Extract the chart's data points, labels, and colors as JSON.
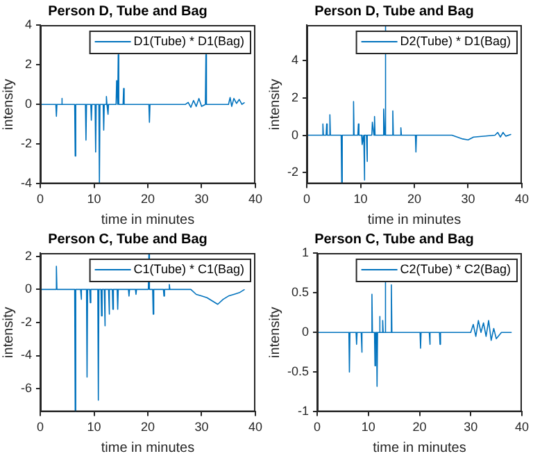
{
  "chart_data": [
    {
      "type": "line",
      "title": "Person D, Tube and Bag",
      "xlabel": "time in minutes",
      "ylabel": "intensity",
      "xlim": [
        0,
        40
      ],
      "xticks": [
        0,
        10,
        20,
        30,
        40
      ],
      "ylim": [
        -4,
        4
      ],
      "yticks": [
        -4,
        -2,
        0,
        2,
        4
      ],
      "legend": "top right",
      "marker": "none",
      "grid": false,
      "x": [
        0,
        2.9,
        3,
        3.1,
        3.9,
        4,
        4.1,
        6.4,
        6.5,
        6.6,
        8.4,
        8.5,
        8.6,
        9.4,
        9.5,
        9.6,
        10.2,
        10.3,
        10.4,
        10.9,
        11,
        11.1,
        11.7,
        11.8,
        11.9,
        12.2,
        12.3,
        12.4,
        12.6,
        12.7,
        14.1,
        14.2,
        14.4,
        14.5,
        14.6,
        15.4,
        15.5,
        15.6,
        20.2,
        20.3,
        20.4,
        27,
        27.5,
        28,
        28.5,
        29,
        29.5,
        30,
        30.7,
        30.8,
        30.9,
        35,
        35.3,
        35.6,
        36,
        36.5,
        37,
        37.5,
        38
      ],
      "series": [
        {
          "name": "D1(Tube) * D1(Bag)",
          "color": "#0072bd",
          "values": [
            0,
            0,
            -0.6,
            0,
            0,
            0.3,
            0,
            0,
            -2.6,
            0,
            0,
            -1.8,
            0,
            0,
            -0.8,
            0,
            0,
            -2.4,
            0,
            0,
            -4,
            0,
            0,
            -1.3,
            0,
            0,
            0.4,
            0,
            -0.5,
            0,
            0,
            1.2,
            0,
            2.5,
            0,
            0,
            0.8,
            0,
            0,
            -0.9,
            0,
            0,
            0.1,
            -0.15,
            0.2,
            -0.1,
            0.3,
            -0.1,
            0,
            2.5,
            0,
            0,
            0.35,
            -0.1,
            0.3,
            0.05,
            0.25,
            0,
            0.1
          ]
        }
      ]
    },
    {
      "type": "line",
      "title": "Person D, Tube and Bag",
      "xlabel": "time in minutes",
      "ylabel": "intensity",
      "xlim": [
        0,
        40
      ],
      "xticks": [
        0,
        10,
        20,
        30,
        40
      ],
      "ylim": [
        -2.6,
        5.9
      ],
      "yticks": [
        -2,
        0,
        2,
        4
      ],
      "legend": "top right",
      "marker": "none",
      "grid": false,
      "x": [
        0,
        2.9,
        3,
        3.1,
        3.6,
        3.7,
        3.8,
        4.2,
        4.3,
        4.4,
        6.4,
        6.5,
        6.6,
        8.6,
        8.7,
        8.8,
        9.5,
        9.6,
        9.7,
        10.2,
        10.3,
        10.6,
        10.7,
        10.8,
        11.1,
        11.2,
        11.3,
        12.1,
        12.2,
        12.5,
        12.6,
        12.7,
        14.2,
        14.3,
        14.5,
        14.6,
        14.7,
        15.9,
        16,
        16.1,
        17.4,
        17.5,
        17.6,
        20.2,
        20.3,
        20.4,
        27,
        28,
        29,
        30,
        31,
        35,
        35.5,
        36,
        36.5,
        37,
        38
      ],
      "series": [
        {
          "name": "D2(Tube) * D1(Bag)",
          "color": "#0072bd",
          "values": [
            0,
            0,
            0.6,
            0,
            0,
            0.6,
            0,
            0,
            1.1,
            0,
            0,
            -2.6,
            0,
            0,
            1.8,
            0,
            0,
            0.6,
            0,
            0,
            -0.5,
            0,
            -2.4,
            0,
            0,
            -1.4,
            0,
            0,
            0.7,
            0,
            1,
            0,
            0,
            1.4,
            0,
            5.9,
            0,
            0,
            1.3,
            0,
            0,
            0.4,
            0,
            0,
            -0.9,
            0,
            0,
            -0.1,
            -0.2,
            -0.25,
            -0.1,
            0,
            0.15,
            -0.1,
            0.15,
            -0.05,
            0.05
          ]
        }
      ]
    },
    {
      "type": "line",
      "title": "Person C, Tube and Bag",
      "xlabel": "time in minutes",
      "ylabel": "intensity",
      "xlim": [
        0,
        40
      ],
      "xticks": [
        0,
        10,
        20,
        30,
        40
      ],
      "ylim": [
        -7.4,
        2.2
      ],
      "yticks": [
        -6,
        -4,
        -2,
        0,
        2
      ],
      "legend": "top right",
      "marker": "none",
      "grid": false,
      "x": [
        0,
        2.9,
        3,
        3.1,
        6.4,
        6.5,
        6.6,
        7.5,
        7.6,
        7.7,
        8.6,
        8.7,
        8.8,
        9.2,
        9.3,
        9.4,
        10.7,
        10.8,
        10.9,
        11.3,
        11.4,
        11.5,
        11.9,
        12,
        12.1,
        12.7,
        12.8,
        12.9,
        13.4,
        13.5,
        13.6,
        14.3,
        14.4,
        14.5,
        16.4,
        16.5,
        16.6,
        17.7,
        17.8,
        17.9,
        20.1,
        20.2,
        20.3,
        20.9,
        21,
        21.1,
        22.9,
        23,
        23.1,
        23.9,
        24,
        24.1,
        28,
        29,
        30,
        31,
        32,
        33,
        34,
        35,
        36,
        37,
        38
      ],
      "series": [
        {
          "name": "C1(Tube) * C1(Bag)",
          "color": "#0072bd",
          "values": [
            0,
            0,
            1.4,
            0,
            0,
            -7.4,
            0,
            0,
            -0.6,
            0,
            0,
            -5.3,
            0,
            0,
            -0.8,
            0,
            0,
            -6.7,
            0,
            0,
            -1.6,
            0,
            0,
            -2.2,
            0,
            0,
            -1.5,
            0,
            0,
            -1.2,
            0,
            0,
            -1.2,
            0,
            0,
            -0.4,
            0,
            0,
            -0.3,
            0,
            0,
            2.2,
            0,
            0,
            -1.5,
            0,
            0,
            -0.4,
            0,
            0,
            0.3,
            0,
            0,
            -0.3,
            -0.4,
            -0.5,
            -0.7,
            -0.9,
            -0.6,
            -0.4,
            -0.3,
            -0.2,
            0
          ]
        }
      ]
    },
    {
      "type": "line",
      "title": "Person C, Tube and Bag",
      "xlabel": "time in minutes",
      "ylabel": "intensity",
      "xlim": [
        0,
        40
      ],
      "xticks": [
        0,
        10,
        20,
        30,
        40
      ],
      "ylim": [
        -1,
        1
      ],
      "yticks": [
        -1,
        -0.5,
        0,
        0.5,
        1
      ],
      "legend": "top right",
      "marker": "none",
      "grid": false,
      "x": [
        0,
        6.2,
        6.3,
        6.4,
        7.6,
        7.7,
        7.8,
        8.6,
        8.7,
        8.8,
        10.6,
        10.7,
        10.8,
        11.2,
        11.3,
        11.4,
        11.6,
        11.7,
        11.8,
        12.1,
        12.2,
        12.3,
        12.7,
        12.8,
        12.9,
        13.2,
        13.3,
        13.4,
        14.4,
        14.5,
        14.6,
        20.1,
        20.2,
        20.3,
        21.9,
        22,
        22.1,
        23.9,
        24,
        24.1,
        30,
        30.5,
        31,
        31.5,
        32,
        32.5,
        33,
        33.5,
        34,
        34.5,
        35,
        36,
        38
      ],
      "series": [
        {
          "name": "C2(Tube) * C2(Bag)",
          "color": "#0072bd",
          "values": [
            0,
            0,
            -0.5,
            0,
            0,
            -0.15,
            0,
            0,
            -0.25,
            0,
            0,
            0.48,
            0,
            0,
            -0.42,
            0,
            0,
            -0.68,
            0,
            0,
            0.2,
            0,
            0,
            0.15,
            0,
            0,
            0.65,
            0,
            0,
            0.6,
            0,
            0,
            -0.2,
            0,
            0,
            -0.15,
            0,
            0,
            -0.15,
            0,
            0,
            0.1,
            -0.05,
            0.15,
            0,
            0.12,
            -0.05,
            0.15,
            -0.1,
            0.05,
            -0.08,
            0,
            0
          ]
        }
      ]
    }
  ]
}
